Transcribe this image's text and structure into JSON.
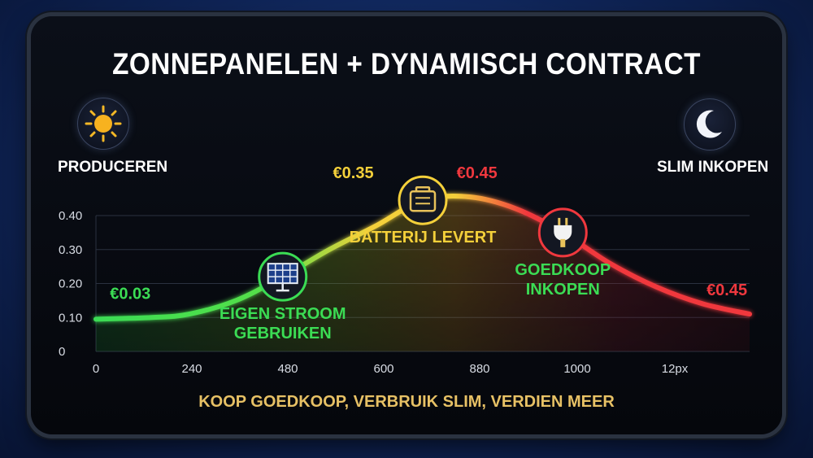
{
  "title": "ZONNEPANELEN + DYNAMISCH CONTRACT",
  "subtitle": "KOOP GOEDKOOP, VERBRUIK SLIM, VERDIEN MEER",
  "corners": {
    "left_label": "PRODUCEREN",
    "left_icon": "sun-icon",
    "right_label": "SLIM INKOPEN",
    "right_icon": "moon-icon"
  },
  "colors": {
    "low": "#3bdc54",
    "mid": "#f4d03a",
    "high": "#f0383e",
    "subtitle": "#e7c165"
  },
  "chart_data": {
    "type": "line",
    "x_tick_labels": [
      "0",
      "240",
      "480",
      "600",
      "880",
      "1000",
      "12px"
    ],
    "y_tick_labels": [
      "0",
      "0.10",
      "0.20",
      "0.30",
      "0.40"
    ],
    "ylim": [
      0,
      0.4
    ],
    "grid": true,
    "x": [
      0,
      120,
      200,
      300,
      400,
      500,
      600,
      700,
      800,
      900,
      1000,
      1100,
      1200,
      1300,
      1400
    ],
    "values": [
      0.095,
      0.1,
      0.11,
      0.15,
      0.22,
      0.3,
      0.37,
      0.445,
      0.455,
      0.42,
      0.35,
      0.26,
      0.19,
      0.14,
      0.11
    ],
    "price_labels": [
      {
        "text": "€0.03",
        "x": 30,
        "y": 0.155,
        "color": "#3bdc54"
      },
      {
        "text": "€0.35",
        "x": 560,
        "y": 0.51,
        "color": "#f4d03a"
      },
      {
        "text": "€0.45",
        "x": 790,
        "y": 0.51,
        "color": "#f0383e"
      },
      {
        "text": "€0.45",
        "x": 1395,
        "y": 0.165,
        "color": "#f0383e"
      }
    ],
    "annotations": [
      {
        "lines": [
          "EIGEN STROOM",
          "GEBRUIKEN"
        ],
        "icon": "solar-panel-icon",
        "color": "#3bdc54",
        "x": 400,
        "y": 0.22
      },
      {
        "lines": [
          "BATTERIJ LEVERT"
        ],
        "icon": "battery-icon",
        "color": "#f4d03a",
        "x": 700,
        "y": 0.445
      },
      {
        "lines": [
          "GOEDKOOP",
          "INKOPEN"
        ],
        "icon": "plug-icon",
        "color": "#3bdc54",
        "x": 1000,
        "y": 0.35
      }
    ]
  }
}
